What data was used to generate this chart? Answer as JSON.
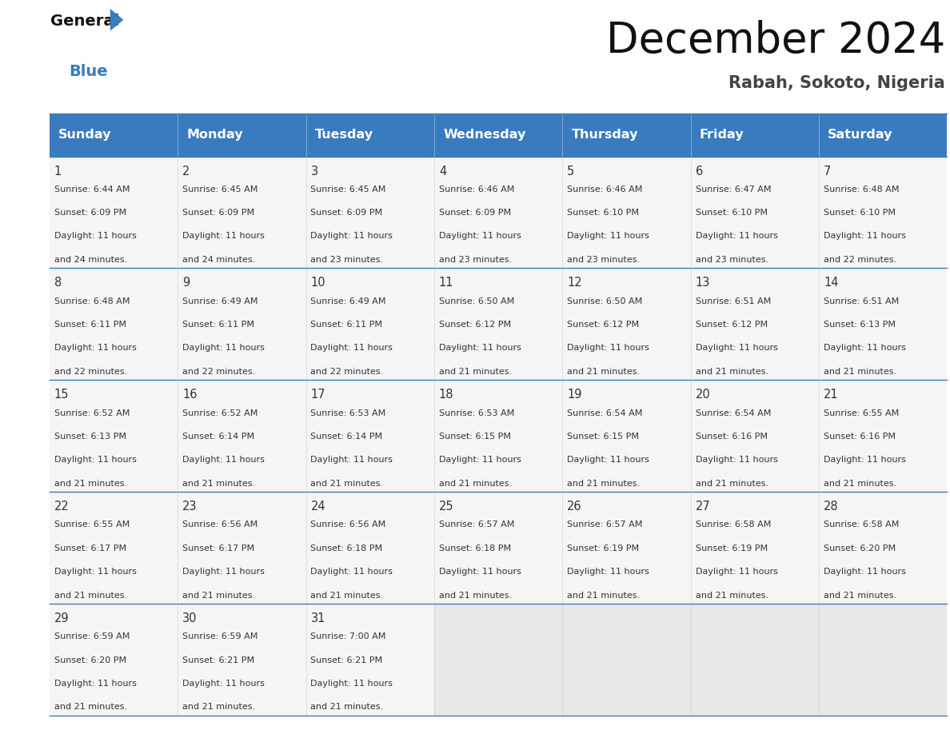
{
  "title": "December 2024",
  "subtitle": "Rabah, Sokoto, Nigeria",
  "header_bg": "#3a7bbf",
  "header_text": "#ffffff",
  "cell_bg_light": "#f5f5f5",
  "cell_bg_dark": "#e8e8e8",
  "cell_text": "#333333",
  "border_color": "#3a7bbf",
  "days_of_week": [
    "Sunday",
    "Monday",
    "Tuesday",
    "Wednesday",
    "Thursday",
    "Friday",
    "Saturday"
  ],
  "weeks": [
    [
      {
        "day": "1",
        "sunrise": "6:44 AM",
        "sunset": "6:09 PM",
        "daylight": "11 hours\nand 24 minutes."
      },
      {
        "day": "2",
        "sunrise": "6:45 AM",
        "sunset": "6:09 PM",
        "daylight": "11 hours\nand 24 minutes."
      },
      {
        "day": "3",
        "sunrise": "6:45 AM",
        "sunset": "6:09 PM",
        "daylight": "11 hours\nand 23 minutes."
      },
      {
        "day": "4",
        "sunrise": "6:46 AM",
        "sunset": "6:09 PM",
        "daylight": "11 hours\nand 23 minutes."
      },
      {
        "day": "5",
        "sunrise": "6:46 AM",
        "sunset": "6:10 PM",
        "daylight": "11 hours\nand 23 minutes."
      },
      {
        "day": "6",
        "sunrise": "6:47 AM",
        "sunset": "6:10 PM",
        "daylight": "11 hours\nand 23 minutes."
      },
      {
        "day": "7",
        "sunrise": "6:48 AM",
        "sunset": "6:10 PM",
        "daylight": "11 hours\nand 22 minutes."
      }
    ],
    [
      {
        "day": "8",
        "sunrise": "6:48 AM",
        "sunset": "6:11 PM",
        "daylight": "11 hours\nand 22 minutes."
      },
      {
        "day": "9",
        "sunrise": "6:49 AM",
        "sunset": "6:11 PM",
        "daylight": "11 hours\nand 22 minutes."
      },
      {
        "day": "10",
        "sunrise": "6:49 AM",
        "sunset": "6:11 PM",
        "daylight": "11 hours\nand 22 minutes."
      },
      {
        "day": "11",
        "sunrise": "6:50 AM",
        "sunset": "6:12 PM",
        "daylight": "11 hours\nand 21 minutes."
      },
      {
        "day": "12",
        "sunrise": "6:50 AM",
        "sunset": "6:12 PM",
        "daylight": "11 hours\nand 21 minutes."
      },
      {
        "day": "13",
        "sunrise": "6:51 AM",
        "sunset": "6:12 PM",
        "daylight": "11 hours\nand 21 minutes."
      },
      {
        "day": "14",
        "sunrise": "6:51 AM",
        "sunset": "6:13 PM",
        "daylight": "11 hours\nand 21 minutes."
      }
    ],
    [
      {
        "day": "15",
        "sunrise": "6:52 AM",
        "sunset": "6:13 PM",
        "daylight": "11 hours\nand 21 minutes."
      },
      {
        "day": "16",
        "sunrise": "6:52 AM",
        "sunset": "6:14 PM",
        "daylight": "11 hours\nand 21 minutes."
      },
      {
        "day": "17",
        "sunrise": "6:53 AM",
        "sunset": "6:14 PM",
        "daylight": "11 hours\nand 21 minutes."
      },
      {
        "day": "18",
        "sunrise": "6:53 AM",
        "sunset": "6:15 PM",
        "daylight": "11 hours\nand 21 minutes."
      },
      {
        "day": "19",
        "sunrise": "6:54 AM",
        "sunset": "6:15 PM",
        "daylight": "11 hours\nand 21 minutes."
      },
      {
        "day": "20",
        "sunrise": "6:54 AM",
        "sunset": "6:16 PM",
        "daylight": "11 hours\nand 21 minutes."
      },
      {
        "day": "21",
        "sunrise": "6:55 AM",
        "sunset": "6:16 PM",
        "daylight": "11 hours\nand 21 minutes."
      }
    ],
    [
      {
        "day": "22",
        "sunrise": "6:55 AM",
        "sunset": "6:17 PM",
        "daylight": "11 hours\nand 21 minutes."
      },
      {
        "day": "23",
        "sunrise": "6:56 AM",
        "sunset": "6:17 PM",
        "daylight": "11 hours\nand 21 minutes."
      },
      {
        "day": "24",
        "sunrise": "6:56 AM",
        "sunset": "6:18 PM",
        "daylight": "11 hours\nand 21 minutes."
      },
      {
        "day": "25",
        "sunrise": "6:57 AM",
        "sunset": "6:18 PM",
        "daylight": "11 hours\nand 21 minutes."
      },
      {
        "day": "26",
        "sunrise": "6:57 AM",
        "sunset": "6:19 PM",
        "daylight": "11 hours\nand 21 minutes."
      },
      {
        "day": "27",
        "sunrise": "6:58 AM",
        "sunset": "6:19 PM",
        "daylight": "11 hours\nand 21 minutes."
      },
      {
        "day": "28",
        "sunrise": "6:58 AM",
        "sunset": "6:20 PM",
        "daylight": "11 hours\nand 21 minutes."
      }
    ],
    [
      {
        "day": "29",
        "sunrise": "6:59 AM",
        "sunset": "6:20 PM",
        "daylight": "11 hours\nand 21 minutes."
      },
      {
        "day": "30",
        "sunrise": "6:59 AM",
        "sunset": "6:21 PM",
        "daylight": "11 hours\nand 21 minutes."
      },
      {
        "day": "31",
        "sunrise": "7:00 AM",
        "sunset": "6:21 PM",
        "daylight": "11 hours\nand 21 minutes."
      },
      null,
      null,
      null,
      null
    ]
  ]
}
